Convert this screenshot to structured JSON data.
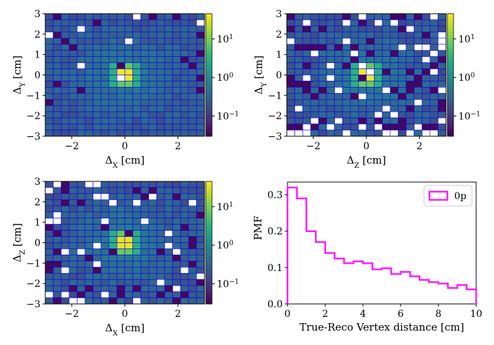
{
  "colors": {
    "grid_line": "#0000ff",
    "step_line": "#ff1aff",
    "empty_cell": "#ffffff",
    "colormap": [
      "#440154",
      "#482878",
      "#3e4989",
      "#31688e",
      "#26828e",
      "#1f9e89",
      "#35b779",
      "#6ece58",
      "#b5de2b",
      "#fde725"
    ]
  },
  "chart_data": [
    {
      "type": "heatmap",
      "panel": "top-left",
      "xlabel": "Δ_X [cm]",
      "ylabel": "Δ_Y [cm]",
      "xlim": [
        -3,
        3
      ],
      "ylim": [
        -3,
        3
      ],
      "bins": 20,
      "xticks": [
        "−2",
        "0",
        "2"
      ],
      "yticks": [
        "−3",
        "−2",
        "−1",
        "0",
        "1",
        "2",
        "3"
      ],
      "colorbar": {
        "scale": "log",
        "range": [
          0.03,
          45
        ],
        "tick_labels": [
          "10^1",
          "10^0",
          "10^−1"
        ]
      },
      "peak": {
        "x": 0,
        "y": 0,
        "value": 40
      },
      "sparsity": 0.02
    },
    {
      "type": "heatmap",
      "panel": "top-right",
      "xlabel": "Δ_Z [cm]",
      "ylabel": "Δ_Y [cm]",
      "xlim": [
        -3,
        3
      ],
      "ylim": [
        -3,
        3
      ],
      "bins": 20,
      "xticks": [
        "−2",
        "0",
        "2"
      ],
      "yticks": [
        "−3",
        "−2",
        "−1",
        "0",
        "1",
        "2",
        "3"
      ],
      "colorbar": {
        "scale": "log",
        "range": [
          0.03,
          45
        ],
        "tick_labels": [
          "10^1",
          "10^0",
          "10^−1"
        ]
      },
      "peak": {
        "x": 0,
        "y": 0,
        "value": 40
      },
      "sparsity": 0.08
    },
    {
      "type": "heatmap",
      "panel": "bottom-left",
      "xlabel": "Δ_X [cm]",
      "ylabel": "Δ_Z [cm]",
      "xlim": [
        -3,
        3
      ],
      "ylim": [
        -3,
        3
      ],
      "bins": 20,
      "xticks": [
        "−2",
        "0",
        "2"
      ],
      "yticks": [
        "−3",
        "−2",
        "−1",
        "0",
        "1",
        "2",
        "3"
      ],
      "colorbar": {
        "scale": "log",
        "range": [
          0.03,
          45
        ],
        "tick_labels": [
          "10^1",
          "10^0",
          "10^−1"
        ]
      },
      "peak": {
        "x": 0,
        "y": 0,
        "value": 35
      },
      "sparsity": 0.06
    },
    {
      "type": "line",
      "panel": "bottom-right",
      "style": "step",
      "xlabel": "True-Reco Vertex distance [cm]",
      "ylabel": "PMF",
      "xlim": [
        0,
        10
      ],
      "ylim": [
        0,
        0.335
      ],
      "xticks": [
        "0",
        "2",
        "4",
        "6",
        "8",
        "10"
      ],
      "yticks": [
        "0.0",
        "0.1",
        "0.2",
        "0.3"
      ],
      "legend": {
        "position": "top-right"
      },
      "series": [
        {
          "name": "0p",
          "bin_edges": [
            0,
            0.5,
            1,
            1.5,
            2,
            2.5,
            3,
            3.5,
            4,
            4.5,
            5,
            5.5,
            6,
            6.5,
            7,
            7.5,
            8,
            8.5,
            9,
            9.5,
            10
          ],
          "values": [
            0.32,
            0.29,
            0.2,
            0.17,
            0.14,
            0.125,
            0.112,
            0.117,
            0.112,
            0.095,
            0.098,
            0.082,
            0.088,
            0.076,
            0.066,
            0.06,
            0.056,
            0.044,
            0.052,
            0.04
          ]
        }
      ]
    }
  ]
}
